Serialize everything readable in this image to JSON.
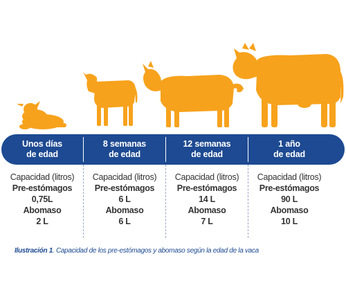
{
  "colors": {
    "animal": "#f7a21c",
    "banner": "#1d4a92",
    "text": "#333333",
    "caption": "#1d4a92"
  },
  "stages": [
    {
      "label1": "Unos días",
      "label2": "de edad",
      "capacity": "Capacidad (litros)",
      "prestomach_label": "Pre-estómagos",
      "prestomach_value": "0,75L",
      "abomasum_label": "Abomaso",
      "abomasum_value": "2 L"
    },
    {
      "label1": "8 semanas",
      "label2": "de edad",
      "capacity": "Capacidad (litros)",
      "prestomach_label": "Pre-estómagos",
      "prestomach_value": "6 L",
      "abomasum_label": "Abomaso",
      "abomasum_value": "6 L"
    },
    {
      "label1": "12 semanas",
      "label2": "de edad",
      "capacity": "Capacidad (litros)",
      "prestomach_label": "Pre-estómagos",
      "prestomach_value": "14 L",
      "abomasum_label": "Abomaso",
      "abomasum_value": "7 L"
    },
    {
      "label1": "1 año",
      "label2": "de edad",
      "capacity": "Capacidad (litros)",
      "prestomach_label": "Pre-estómagos",
      "prestomach_value": "90 L",
      "abomasum_label": "Abomaso",
      "abomasum_value": "10 L"
    }
  ],
  "caption": {
    "prefix": "Ilustración 1",
    "text": ". Capacidad de los pre-estómagos y abomaso según la edad de la vaca"
  },
  "icons": [
    "lying-calf-icon",
    "young-calf-icon",
    "heifer-icon",
    "cow-icon"
  ]
}
